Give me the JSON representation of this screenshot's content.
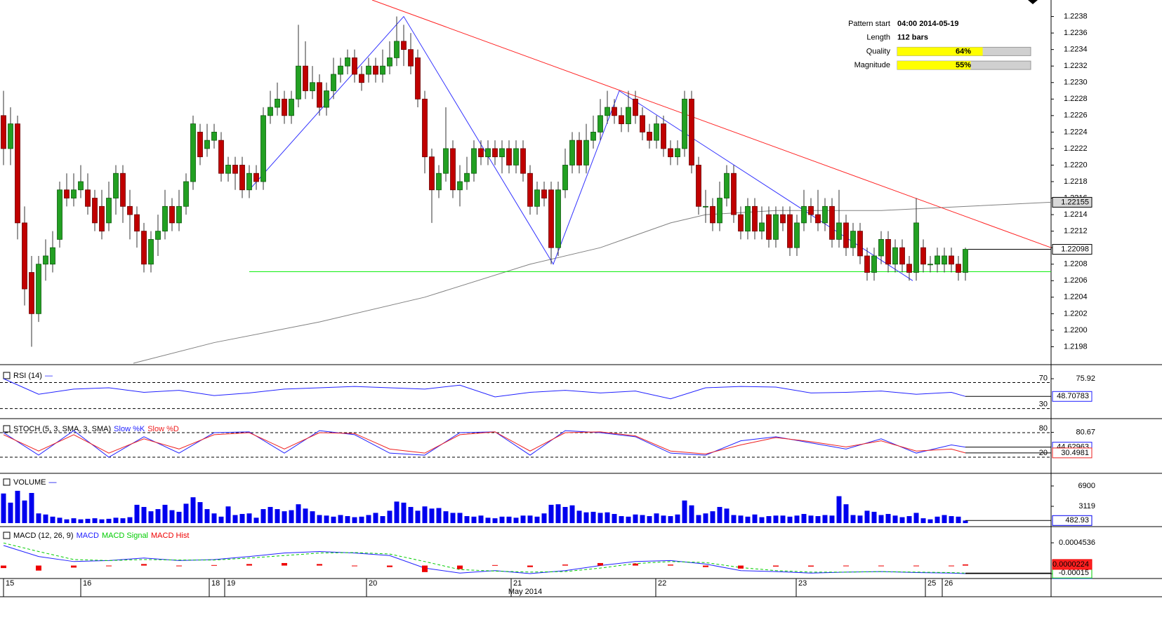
{
  "chart_data": [
    {
      "type": "candlestick",
      "x_labels": [
        "15",
        "16",
        "18",
        "19",
        "20",
        "21",
        "22",
        "23",
        "25",
        "26"
      ],
      "x_title": "May 2014",
      "colors": {
        "up": "#22a022",
        "down": "#c00000"
      },
      "ylim": [
        1.2196,
        1.224
      ],
      "yticks": [
        1.2198,
        {
          "value": 1.22,
          "label": "1.2200"
        },
        1.2202,
        1.2204,
        1.2206,
        1.2208,
        {
          "value": 1.221,
          "label": "1.2210"
        },
        1.2212,
        1.2214,
        1.2216,
        1.2218,
        {
          "value": 1.222,
          "label": "1.2220"
        },
        1.2222,
        1.2224,
        1.2226,
        1.2228,
        {
          "value": 1.223,
          "label": "1.2230"
        },
        1.2232,
        1.2234,
        1.2236,
        1.2238
      ],
      "open": [
        1.2226,
        1.2222,
        1.2225,
        1.2213,
        1.2207,
        1.2202,
        1.2208,
        1.2208,
        1.2211,
        1.2217,
        1.2216,
        1.2217,
        1.2217,
        1.2216,
        1.2215,
        1.2213,
        1.2216,
        1.2219,
        1.2215,
        1.2214,
        1.2212,
        1.2208,
        1.2211,
        1.2212,
        1.2215,
        1.2213,
        1.2215,
        1.2218,
        1.2224,
        1.2222,
        1.2223,
        1.2223,
        1.2219,
        1.222,
        1.222,
        1.2217,
        1.2219,
        1.2218,
        1.2226,
        1.2227,
        1.2228,
        1.2226,
        1.2228,
        1.2232,
        1.2229,
        1.223,
        1.2227,
        1.2229,
        1.2231,
        1.2232,
        1.2233,
        1.2231,
        1.2231,
        1.2232,
        1.2231,
        1.2232,
        1.2233,
        1.2235,
        1.2234,
        1.2233,
        1.2228,
        1.2221,
        1.2217,
        1.2219,
        1.2222,
        1.2217,
        1.2218,
        1.2219,
        1.2222,
        1.2221,
        1.2222,
        1.2221,
        1.2222,
        1.222,
        1.2222,
        1.2219,
        1.2215,
        1.2217,
        1.2217,
        1.221,
        1.2217,
        1.222,
        1.2223,
        1.222,
        1.2223,
        1.2224,
        1.2226,
        1.2227,
        1.2226,
        1.2225,
        1.2228,
        1.2226,
        1.2224,
        1.2223,
        1.2225,
        1.2222,
        1.2221,
        1.2222,
        1.2228,
        1.222,
        1.2215,
        1.2215,
        1.2213,
        1.2216,
        1.2219,
        1.2214,
        1.2212,
        1.2215,
        1.2212,
        1.2214,
        1.2211,
        1.2214,
        1.2214,
        1.221,
        1.2213,
        1.2215,
        1.2214,
        1.2213,
        1.2215,
        1.2211,
        1.2213,
        1.221,
        1.2212,
        1.2209,
        1.2207,
        1.2209,
        1.2211,
        1.2208,
        1.221,
        1.2208,
        1.2207,
        1.221,
        1.2208,
        1.2208,
        1.2208,
        1.2209,
        1.2208,
        1.2207
      ],
      "high": [
        1.2229,
        1.2227,
        1.2226,
        1.2215,
        1.2209,
        1.2209,
        1.2211,
        1.2212,
        1.2218,
        1.2219,
        1.2219,
        1.222,
        1.2219,
        1.2217,
        1.2217,
        1.2218,
        1.222,
        1.222,
        1.2217,
        1.2215,
        1.2213,
        1.2212,
        1.2214,
        1.2217,
        1.2216,
        1.2217,
        1.2219,
        1.2226,
        1.2225,
        1.2225,
        1.2225,
        1.2224,
        1.2221,
        1.2221,
        1.2221,
        1.222,
        1.222,
        1.2227,
        1.2229,
        1.223,
        1.2229,
        1.2229,
        1.2237,
        1.2235,
        1.2232,
        1.2231,
        1.223,
        1.2233,
        1.2233,
        1.2234,
        1.2234,
        1.2232,
        1.2233,
        1.2233,
        1.2234,
        1.2235,
        1.2238,
        1.2237,
        1.2236,
        1.2234,
        1.2229,
        1.2222,
        1.222,
        1.2227,
        1.2223,
        1.222,
        1.2221,
        1.2223,
        1.2223,
        1.2223,
        1.2223,
        1.2223,
        1.2223,
        1.2223,
        1.2223,
        1.222,
        1.2218,
        1.2218,
        1.2218,
        1.2218,
        1.2222,
        1.2224,
        1.2224,
        1.2225,
        1.2226,
        1.2228,
        1.2229,
        1.2228,
        1.2227,
        1.2229,
        1.2229,
        1.2227,
        1.2225,
        1.2226,
        1.2226,
        1.2223,
        1.2223,
        1.2229,
        1.2229,
        1.2221,
        1.2217,
        1.2216,
        1.2218,
        1.222,
        1.222,
        1.2215,
        1.2216,
        1.2216,
        1.2215,
        1.2215,
        1.2215,
        1.2215,
        1.2215,
        1.2214,
        1.2217,
        1.2216,
        1.2217,
        1.2216,
        1.2216,
        1.2217,
        1.2214,
        1.2213,
        1.2213,
        1.221,
        1.221,
        1.2212,
        1.2212,
        1.2211,
        1.2211,
        1.2209,
        1.2216,
        1.2211,
        1.2209,
        1.221,
        1.221,
        1.221,
        1.2209,
        1.221
      ],
      "low": [
        1.222,
        1.222,
        1.2211,
        1.2203,
        1.2198,
        1.2201,
        1.2206,
        1.2207,
        1.221,
        1.2215,
        1.2215,
        1.2216,
        1.2214,
        1.2212,
        1.2211,
        1.2212,
        1.2214,
        1.2213,
        1.2211,
        1.221,
        1.2207,
        1.2207,
        1.2209,
        1.2211,
        1.2212,
        1.2212,
        1.2214,
        1.2217,
        1.222,
        1.2221,
        1.2222,
        1.2218,
        1.2218,
        1.2217,
        1.2216,
        1.2216,
        1.2217,
        1.2217,
        1.2225,
        1.2226,
        1.2225,
        1.2225,
        1.2227,
        1.2228,
        1.2228,
        1.2226,
        1.2226,
        1.2228,
        1.223,
        1.2231,
        1.223,
        1.2229,
        1.223,
        1.223,
        1.223,
        1.2231,
        1.2232,
        1.2232,
        1.2231,
        1.2227,
        1.2219,
        1.2213,
        1.2216,
        1.2218,
        1.2216,
        1.2215,
        1.2217,
        1.2218,
        1.222,
        1.222,
        1.222,
        1.2219,
        1.2219,
        1.2219,
        1.2218,
        1.2214,
        1.2214,
        1.2215,
        1.2208,
        1.2209,
        1.2216,
        1.2219,
        1.2219,
        1.2219,
        1.2222,
        1.2223,
        1.2225,
        1.2225,
        1.2224,
        1.2224,
        1.2225,
        1.2223,
        1.2222,
        1.2222,
        1.2221,
        1.222,
        1.222,
        1.2221,
        1.2219,
        1.2214,
        1.2213,
        1.2212,
        1.2212,
        1.2215,
        1.2213,
        1.2211,
        1.2211,
        1.2211,
        1.2211,
        1.221,
        1.221,
        1.2212,
        1.2209,
        1.2209,
        1.2212,
        1.2213,
        1.2212,
        1.2212,
        1.221,
        1.221,
        1.2209,
        1.2209,
        1.2208,
        1.2206,
        1.2206,
        1.2208,
        1.2207,
        1.2207,
        1.2207,
        1.2206,
        1.2206,
        1.2207,
        1.2207,
        1.2207,
        1.2207,
        1.2207,
        1.2206,
        1.2206
      ],
      "close": [
        1.2222,
        1.2225,
        1.2213,
        1.2205,
        1.2202,
        1.2208,
        1.2209,
        1.221,
        1.2217,
        1.2216,
        1.2217,
        1.2218,
        1.2215,
        1.2213,
        1.2212,
        1.2216,
        1.2219,
        1.2215,
        1.2214,
        1.2212,
        1.2208,
        1.2211,
        1.2212,
        1.2215,
        1.2213,
        1.2215,
        1.2218,
        1.2225,
        1.2221,
        1.2223,
        1.2224,
        1.2219,
        1.222,
        1.2219,
        1.2217,
        1.2219,
        1.2218,
        1.2226,
        1.2227,
        1.2228,
        1.2226,
        1.2228,
        1.2232,
        1.2229,
        1.223,
        1.2227,
        1.2229,
        1.2231,
        1.2232,
        1.2233,
        1.2231,
        1.223,
        1.2232,
        1.2231,
        1.2232,
        1.2233,
        1.2235,
        1.2234,
        1.2232,
        1.2228,
        1.2221,
        1.2217,
        1.2219,
        1.2222,
        1.2217,
        1.2218,
        1.2219,
        1.2222,
        1.2221,
        1.2222,
        1.2221,
        1.2222,
        1.222,
        1.2222,
        1.2219,
        1.2215,
        1.2217,
        1.2216,
        1.221,
        1.2217,
        1.222,
        1.2223,
        1.222,
        1.2223,
        1.2224,
        1.2226,
        1.2227,
        1.2226,
        1.2225,
        1.2227,
        1.2226,
        1.2224,
        1.2223,
        1.2225,
        1.2222,
        1.2221,
        1.2222,
        1.2228,
        1.222,
        1.2215,
        1.2215,
        1.2213,
        1.2216,
        1.2219,
        1.2214,
        1.2212,
        1.2215,
        1.2212,
        1.2213,
        1.2211,
        1.2214,
        1.2213,
        1.221,
        1.2213,
        1.2215,
        1.2214,
        1.2213,
        1.2215,
        1.2211,
        1.2213,
        1.221,
        1.2212,
        1.2209,
        1.2207,
        1.2209,
        1.2211,
        1.2208,
        1.221,
        1.2208,
        1.2207,
        1.2213,
        1.2208,
        1.2208,
        1.2209,
        1.2209,
        1.2208,
        1.2207,
        1.22098
      ],
      "ma": {
        "color": "#808080",
        "x": [
          18.5,
          30,
          45,
          60,
          75,
          85,
          95,
          100,
          110,
          125,
          137,
          149.2
        ],
        "values": [
          1.2196,
          1.21985,
          1.2201,
          1.2204,
          1.2208,
          1.221,
          1.2213,
          1.2214,
          1.22145,
          1.22145,
          1.2215,
          1.22155
        ]
      },
      "zigzag": {
        "color": "#3333ff",
        "x": [
          35,
          57,
          78.3,
          87.7,
          129.5
        ],
        "values": [
          1.2217,
          1.2238,
          1.2208,
          1.2229,
          1.2206
        ]
      },
      "resistance": {
        "color": "#ff2020",
        "x": [
          52.5,
          149.2
        ],
        "values": [
          1.224,
          1.221
        ]
      },
      "support": {
        "color": "#00ee00",
        "x": [
          35,
          149.2
        ],
        "values": [
          1.22071,
          1.22071
        ]
      },
      "pattern": [
        {
          "label": "Pattern start",
          "text": "04:00 2014-05-19"
        },
        {
          "label": "Length",
          "text": "112 bars"
        },
        {
          "label": "Quality",
          "value": 64,
          "value_label": "64%"
        },
        {
          "label": "Magnitude",
          "value": 55,
          "value_label": "55%"
        }
      ]
    },
    {
      "type": "line",
      "title": "RSI (14)",
      "x": [
        0,
        5,
        10,
        15,
        20,
        25,
        30,
        35,
        40,
        45,
        50,
        55,
        60,
        65,
        70,
        75,
        80,
        85,
        90,
        95,
        100,
        105,
        110,
        115,
        120,
        125,
        130,
        135,
        137
      ],
      "series": [
        {
          "color": "#2020ff",
          "values": [
            76,
            52,
            60,
            62,
            55,
            58,
            50,
            54,
            60,
            62,
            64,
            62,
            60,
            66,
            48,
            55,
            58,
            54,
            57,
            45,
            62,
            64,
            63,
            54,
            55,
            57,
            52,
            55,
            48.70783
          ]
        }
      ],
      "ylim": [
        21,
        90
      ],
      "yticks": [
        75.92
      ],
      "levels": [
        70,
        30
      ]
    },
    {
      "type": "line",
      "title": "STOCH (5, 3, SMA, 3, SMA)",
      "x": [
        0,
        5,
        10,
        15,
        20,
        25,
        30,
        35,
        40,
        45,
        50,
        55,
        60,
        65,
        70,
        75,
        80,
        85,
        90,
        95,
        100,
        105,
        110,
        115,
        120,
        125,
        130,
        135,
        137
      ],
      "series": [
        {
          "name": "Slow %K",
          "color": "#2020ff",
          "values": [
            80,
            25,
            85,
            20,
            70,
            30,
            80,
            82,
            30,
            85,
            75,
            30,
            25,
            80,
            82,
            25,
            85,
            80,
            70,
            30,
            25,
            60,
            70,
            55,
            40,
            65,
            30,
            50,
            44.62963
          ]
        },
        {
          "name": "Slow %D",
          "color": "#ee2020",
          "values": [
            75,
            35,
            75,
            30,
            65,
            40,
            75,
            80,
            40,
            80,
            78,
            40,
            30,
            75,
            82,
            35,
            80,
            82,
            72,
            35,
            28,
            50,
            68,
            58,
            45,
            60,
            35,
            40,
            30.4981
          ]
        }
      ],
      "ylim": [
        -16,
        104
      ],
      "yticks": [
        80.67
      ],
      "levels": [
        80,
        20
      ]
    },
    {
      "type": "bar",
      "title": "VOLUME",
      "color": "#0000ee",
      "values": [
        5500,
        3800,
        6000,
        4200,
        5600,
        1800,
        1600,
        1200,
        1000,
        700,
        900,
        700,
        800,
        900,
        700,
        800,
        1000,
        900,
        1100,
        3400,
        3000,
        2200,
        2600,
        3400,
        2400,
        2100,
        3600,
        4800,
        3900,
        2600,
        1800,
        1200,
        3100,
        1500,
        1700,
        1800,
        1000,
        2600,
        3000,
        2600,
        2200,
        2400,
        3500,
        2700,
        2200,
        1500,
        1400,
        1200,
        1500,
        1300,
        1100,
        1200,
        1500,
        1900,
        1300,
        2300,
        4000,
        3800,
        3000,
        2300,
        3100,
        2700,
        2800,
        2200,
        1900,
        1900,
        1300,
        1200,
        1400,
        1000,
        900,
        1200,
        1200,
        1000,
        1400,
        1400,
        1200,
        1800,
        3400,
        3500,
        3000,
        3300,
        2300,
        2000,
        2100,
        1900,
        2000,
        1700,
        1300,
        1200,
        1600,
        1500,
        1300,
        1800,
        1400,
        1300,
        1600,
        4200,
        3300,
        1500,
        1800,
        2200,
        3000,
        2700,
        1500,
        1400,
        1200,
        1600,
        1100,
        1300,
        1400,
        1400,
        1200,
        1400,
        1700,
        1400,
        1300,
        1500,
        1400,
        5000,
        3500,
        1500,
        1400,
        2300,
        2100,
        1500,
        1700,
        1400,
        1100,
        1300,
        1900,
        900,
        700,
        1200,
        1500,
        1300,
        1200,
        482.93
      ],
      "ylim": [
        0,
        8725
      ],
      "yticks": [
        6900,
        3119
      ]
    },
    {
      "type": "line",
      "title": "MACD (12, 26, 9)",
      "x": [
        0,
        5,
        10,
        15,
        20,
        25,
        30,
        35,
        40,
        45,
        50,
        55,
        60,
        65,
        70,
        75,
        80,
        85,
        90,
        95,
        100,
        105,
        110,
        115,
        120,
        125,
        130,
        135,
        137
      ],
      "series": [
        {
          "name": "MACD",
          "color": "#2020ff",
          "values": [
            0.0004,
            0.00018,
            8e-05,
            0.0001,
            0.00015,
            0.0001,
            0.00012,
            0.00018,
            0.00025,
            0.00028,
            0.00025,
            0.0002,
            -5e-05,
            -0.00015,
            -0.0001,
            -0.00016,
            -0.0001,
            0,
            8e-05,
            0.0001,
            3e-05,
            -0.0001,
            -0.00012,
            -0.00015,
            -0.00013,
            -0.00012,
            -0.00014,
            -0.00015,
            -0.0001608
          ]
        },
        {
          "name": "MACD Signal",
          "color": "#00cc00",
          "dashed": true,
          "values": [
            0.00045,
            0.00028,
            0.00012,
            0.0001,
            0.00012,
            0.00011,
            0.00011,
            0.00015,
            0.0002,
            0.00025,
            0.00026,
            0.00023,
            8e-05,
            -8e-05,
            -0.00011,
            -0.00013,
            -0.00012,
            -5e-05,
            4e-05,
            8e-05,
            6e-05,
            -4e-05,
            -0.0001,
            -0.00013,
            -0.00013,
            -0.00012,
            -0.00013,
            -0.00014,
            -0.00015
          ]
        },
        {
          "name": "MACD Hist",
          "color": "#ee0000",
          "histogram": true,
          "values": [
            -5e-05,
            -0.0001,
            -4e-05,
            0,
            3e-05,
            -1e-05,
            1e-05,
            3e-05,
            5e-05,
            3e-05,
            -1e-05,
            -3e-05,
            -0.00013,
            -7e-05,
            1e-05,
            -3e-05,
            2e-05,
            5e-05,
            4e-05,
            2e-05,
            -3e-05,
            -6e-05,
            -2e-05,
            -2e-05,
            0,
            0,
            -1e-05,
            -1e-05,
            2.24e-05
          ]
        }
      ],
      "ylim": [
        -0.00023,
        0.00072
      ],
      "yticks": [
        0.0004536
      ]
    }
  ]
}
